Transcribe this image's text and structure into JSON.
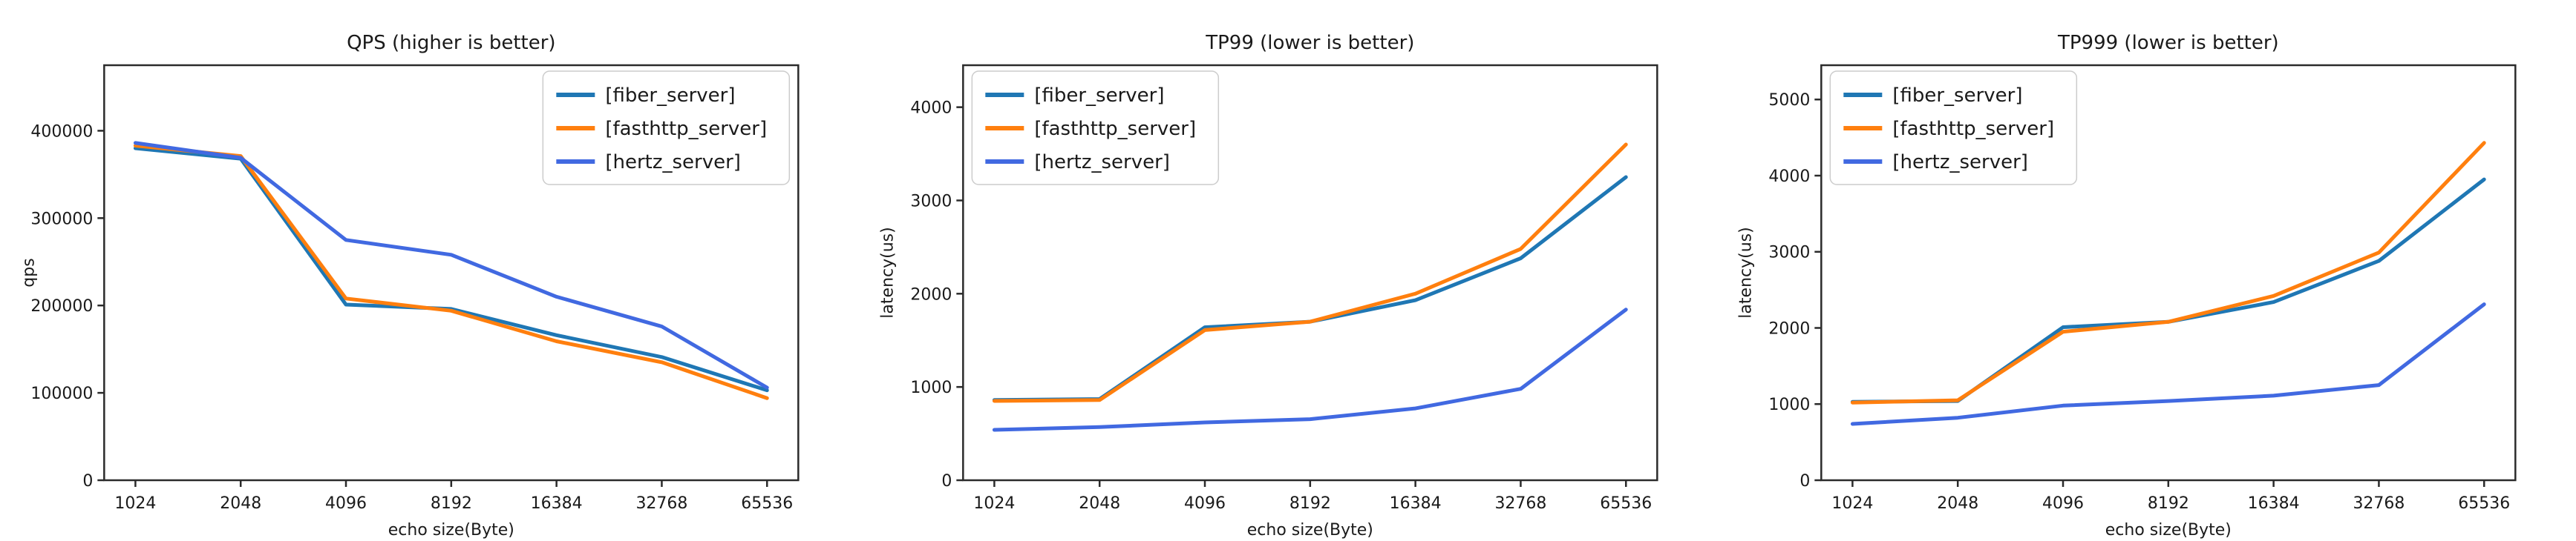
{
  "figure": {
    "background": "#ffffff",
    "text_color": "#1a1a1a",
    "axis_color": "#2b2b2b",
    "legend_border_color": "#cccccc",
    "xlabel": "echo size(Byte)"
  },
  "chart_data": [
    {
      "type": "line",
      "title": "QPS (higher is better)",
      "xlabel": "echo size(Byte)",
      "ylabel": "qps",
      "categories": [
        "1024",
        "2048",
        "4096",
        "8192",
        "16384",
        "32768",
        "65536"
      ],
      "yticks": [
        0,
        100000,
        200000,
        300000,
        400000
      ],
      "ylim": [
        0,
        475000
      ],
      "grid": false,
      "legend_position": "top-right",
      "series": [
        {
          "name": "[fiber_server]",
          "color": "#1f77b4",
          "values": [
            380000,
            368000,
            201000,
            196000,
            166000,
            141000,
            103000
          ]
        },
        {
          "name": "[fasthttp_server]",
          "color": "#ff7f0e",
          "values": [
            383000,
            371000,
            208000,
            194000,
            159000,
            135000,
            94000
          ]
        },
        {
          "name": "[hertz_server]",
          "color": "#4169e1",
          "values": [
            386000,
            369000,
            275000,
            258000,
            210000,
            176000,
            106000
          ]
        }
      ]
    },
    {
      "type": "line",
      "title": "TP99 (lower is better)",
      "xlabel": "echo size(Byte)",
      "ylabel": "latency(us)",
      "categories": [
        "1024",
        "2048",
        "4096",
        "8192",
        "16384",
        "32768",
        "65536"
      ],
      "yticks": [
        0,
        1000,
        2000,
        3000,
        4000
      ],
      "ylim": [
        0,
        4450
      ],
      "grid": false,
      "legend_position": "top-left",
      "series": [
        {
          "name": "[fiber_server]",
          "color": "#1f77b4",
          "values": [
            860,
            870,
            1640,
            1700,
            1930,
            2380,
            3250
          ]
        },
        {
          "name": "[fasthttp_server]",
          "color": "#ff7f0e",
          "values": [
            850,
            860,
            1610,
            1700,
            2000,
            2480,
            3600
          ]
        },
        {
          "name": "[hertz_server]",
          "color": "#4169e1",
          "values": [
            540,
            570,
            620,
            655,
            770,
            980,
            1830
          ]
        }
      ]
    },
    {
      "type": "line",
      "title": "TP999 (lower is better)",
      "xlabel": "echo size(Byte)",
      "ylabel": "latency(us)",
      "categories": [
        "1024",
        "2048",
        "4096",
        "8192",
        "16384",
        "32768",
        "65536"
      ],
      "yticks": [
        0,
        1000,
        2000,
        3000,
        4000,
        5000
      ],
      "ylim": [
        0,
        5450
      ],
      "grid": false,
      "legend_position": "top-left",
      "series": [
        {
          "name": "[fiber_server]",
          "color": "#1f77b4",
          "values": [
            1030,
            1040,
            2010,
            2080,
            2340,
            2880,
            3950
          ]
        },
        {
          "name": "[fasthttp_server]",
          "color": "#ff7f0e",
          "values": [
            1020,
            1050,
            1950,
            2080,
            2420,
            2990,
            4430
          ]
        },
        {
          "name": "[hertz_server]",
          "color": "#4169e1",
          "values": [
            740,
            820,
            980,
            1040,
            1110,
            1250,
            2310
          ]
        }
      ]
    }
  ]
}
